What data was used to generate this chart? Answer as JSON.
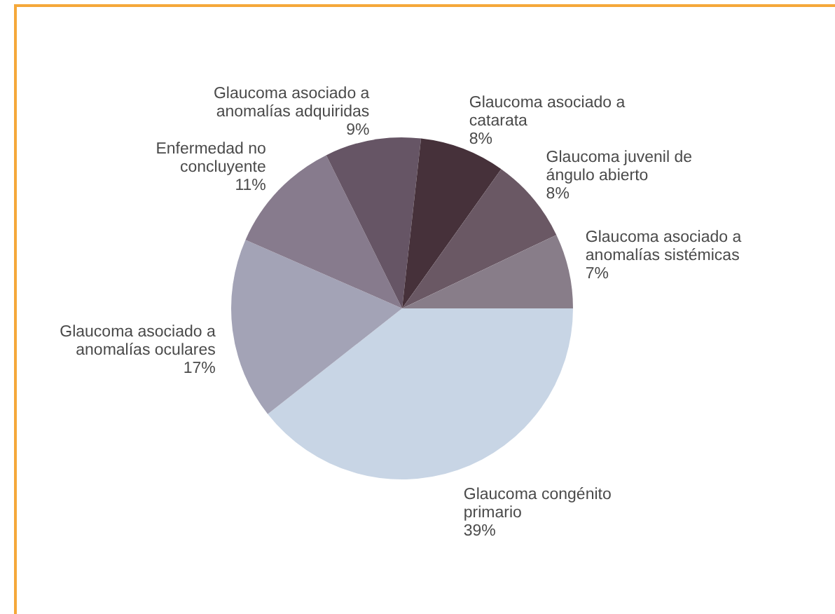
{
  "chart_data": {
    "type": "pie",
    "categories": [
      "Glaucoma congénito primario",
      "Glaucoma asociado a anomalías oculares",
      "Enfermedad no concluyente",
      "Glaucoma asociado a anomalías adquiridas",
      "Glaucoma asociado a catarata",
      "Glaucoma juvenil de ángulo abierto",
      "Glaucoma asociado a anomalías sistémicas"
    ],
    "values": [
      39,
      17,
      11,
      9,
      8,
      8,
      7
    ],
    "value_labels": [
      "39%",
      "17%",
      "11%",
      "9%",
      "8%",
      "8%",
      "7%"
    ],
    "colors": [
      "#c8d5e5",
      "#a3a3b6",
      "#877b8d",
      "#665565",
      "#46313a",
      "#6a5864",
      "#887d89"
    ],
    "legend": false
  }
}
